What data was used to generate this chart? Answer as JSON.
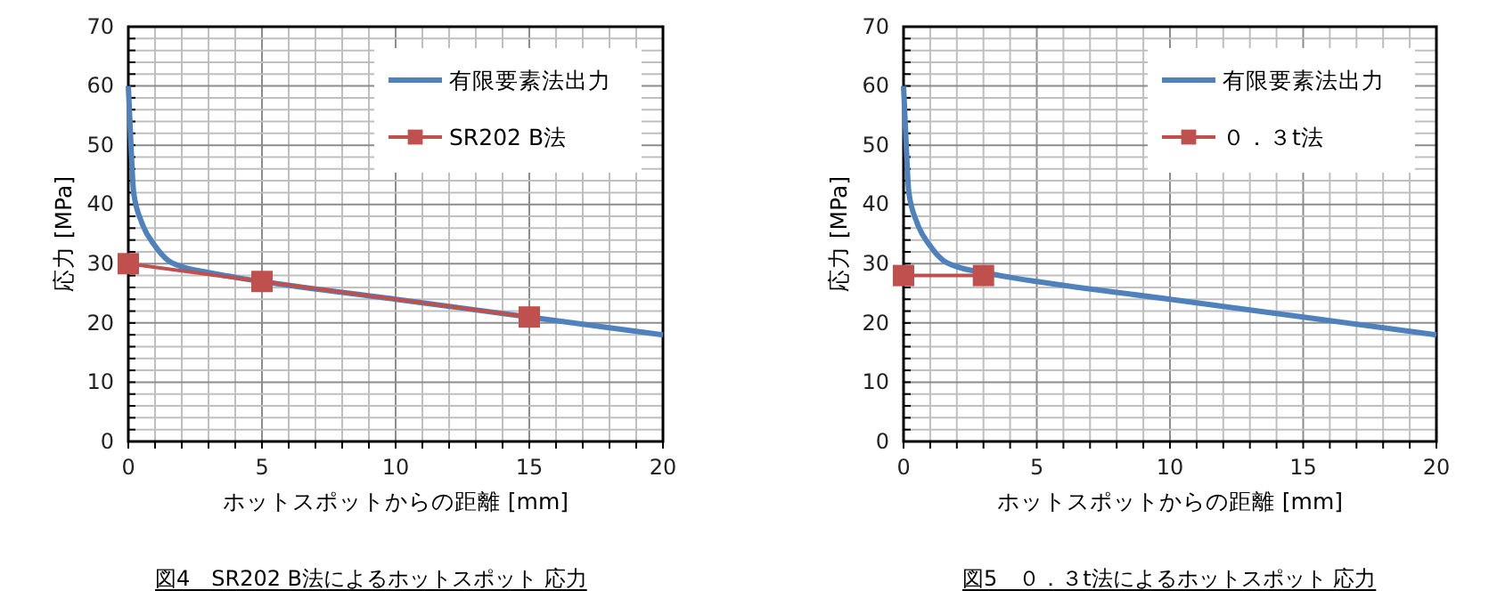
{
  "chart_data": [
    {
      "type": "line",
      "xlabel": "ホットスポットからの距離 [mm]",
      "ylabel": "応力 [MPa]",
      "xlim": [
        0,
        20
      ],
      "ylim": [
        0,
        70
      ],
      "xticks": [
        0,
        {
          "value": 1,
          "label": null
        },
        {
          "value": 2,
          "label": null
        },
        {
          "value": 3,
          "label": null
        },
        {
          "value": 4,
          "label": null
        },
        5,
        {
          "value": 6,
          "label": null
        },
        {
          "value": 7,
          "label": null
        },
        {
          "value": 8,
          "label": null
        },
        {
          "value": 9,
          "label": null
        },
        10,
        {
          "value": 11,
          "label": null
        },
        {
          "value": 12,
          "label": null
        },
        {
          "value": 13,
          "label": null
        },
        {
          "value": 14,
          "label": null
        },
        15,
        {
          "value": 16,
          "label": null
        },
        {
          "value": 17,
          "label": null
        },
        {
          "value": 18,
          "label": null
        },
        {
          "value": 19,
          "label": null
        },
        20
      ],
      "yticks": [
        0,
        {
          "value": 2,
          "label": null
        },
        {
          "value": 4,
          "label": null
        },
        {
          "value": 6,
          "label": null
        },
        {
          "value": 8,
          "label": null
        },
        10,
        {
          "value": 12,
          "label": null
        },
        {
          "value": 14,
          "label": null
        },
        {
          "value": 16,
          "label": null
        },
        {
          "value": 18,
          "label": null
        },
        20,
        {
          "value": 22,
          "label": null
        },
        {
          "value": 24,
          "label": null
        },
        {
          "value": 26,
          "label": null
        },
        {
          "value": 28,
          "label": null
        },
        30,
        {
          "value": 32,
          "label": null
        },
        {
          "value": 34,
          "label": null
        },
        {
          "value": 36,
          "label": null
        },
        {
          "value": 38,
          "label": null
        },
        40,
        {
          "value": 42,
          "label": null
        },
        {
          "value": 44,
          "label": null
        },
        {
          "value": 46,
          "label": null
        },
        {
          "value": 48,
          "label": null
        },
        50,
        {
          "value": 52,
          "label": null
        },
        {
          "value": 54,
          "label": null
        },
        {
          "value": 56,
          "label": null
        },
        {
          "value": 58,
          "label": null
        },
        60,
        {
          "value": 62,
          "label": null
        },
        {
          "value": 64,
          "label": null
        },
        {
          "value": 66,
          "label": null
        },
        {
          "value": 68,
          "label": null
        },
        70
      ],
      "grid": true,
      "legend": "top right",
      "series": [
        {
          "name": "有限要素法出力",
          "color": "#4f81bd",
          "marker": "none",
          "x": [
            0,
            0.1,
            0.2,
            0.5,
            1,
            1.5,
            2,
            3,
            4,
            5,
            10,
            15,
            20
          ],
          "values": [
            60,
            50,
            42,
            37,
            33,
            30.5,
            29.5,
            28.5,
            27.7,
            27,
            24,
            21,
            18
          ]
        },
        {
          "name": "SR202 B法",
          "color": "#c0504d",
          "marker": "square",
          "x": [
            0,
            5,
            15
          ],
          "values": [
            30,
            27,
            21
          ]
        }
      ],
      "annotations": [
        "図4　SR202 B法によるホットスポット 応力"
      ]
    },
    {
      "type": "line",
      "xlabel": "ホットスポットからの距離 [mm]",
      "ylabel": "応力 [MPa]",
      "xlim": [
        0,
        20
      ],
      "ylim": [
        0,
        70
      ],
      "xticks": [
        0,
        {
          "value": 1,
          "label": null
        },
        {
          "value": 2,
          "label": null
        },
        {
          "value": 3,
          "label": null
        },
        {
          "value": 4,
          "label": null
        },
        5,
        {
          "value": 6,
          "label": null
        },
        {
          "value": 7,
          "label": null
        },
        {
          "value": 8,
          "label": null
        },
        {
          "value": 9,
          "label": null
        },
        10,
        {
          "value": 11,
          "label": null
        },
        {
          "value": 12,
          "label": null
        },
        {
          "value": 13,
          "label": null
        },
        {
          "value": 14,
          "label": null
        },
        15,
        {
          "value": 16,
          "label": null
        },
        {
          "value": 17,
          "label": null
        },
        {
          "value": 18,
          "label": null
        },
        {
          "value": 19,
          "label": null
        },
        20
      ],
      "yticks": [
        0,
        {
          "value": 2,
          "label": null
        },
        {
          "value": 4,
          "label": null
        },
        {
          "value": 6,
          "label": null
        },
        {
          "value": 8,
          "label": null
        },
        10,
        {
          "value": 12,
          "label": null
        },
        {
          "value": 14,
          "label": null
        },
        {
          "value": 16,
          "label": null
        },
        {
          "value": 18,
          "label": null
        },
        20,
        {
          "value": 22,
          "label": null
        },
        {
          "value": 24,
          "label": null
        },
        {
          "value": 26,
          "label": null
        },
        {
          "value": 28,
          "label": null
        },
        30,
        {
          "value": 32,
          "label": null
        },
        {
          "value": 34,
          "label": null
        },
        {
          "value": 36,
          "label": null
        },
        {
          "value": 38,
          "label": null
        },
        40,
        {
          "value": 42,
          "label": null
        },
        {
          "value": 44,
          "label": null
        },
        {
          "value": 46,
          "label": null
        },
        {
          "value": 48,
          "label": null
        },
        50,
        {
          "value": 52,
          "label": null
        },
        {
          "value": 54,
          "label": null
        },
        {
          "value": 56,
          "label": null
        },
        {
          "value": 58,
          "label": null
        },
        60,
        {
          "value": 62,
          "label": null
        },
        {
          "value": 64,
          "label": null
        },
        {
          "value": 66,
          "label": null
        },
        {
          "value": 68,
          "label": null
        },
        70
      ],
      "grid": true,
      "legend": "top right",
      "series": [
        {
          "name": "有限要素法出力",
          "color": "#4f81bd",
          "marker": "none",
          "x": [
            0,
            0.1,
            0.2,
            0.5,
            1,
            1.5,
            2,
            3,
            4,
            5,
            10,
            15,
            20
          ],
          "values": [
            60,
            50,
            42,
            37,
            33,
            30.5,
            29.5,
            28.5,
            27.7,
            27,
            24,
            21,
            18
          ]
        },
        {
          "name": "０．３t法",
          "color": "#c0504d",
          "marker": "square",
          "x": [
            0,
            3
          ],
          "values": [
            28,
            28
          ]
        }
      ],
      "annotations": [
        "図5　０．３t法によるホットスポット 応力"
      ]
    }
  ]
}
